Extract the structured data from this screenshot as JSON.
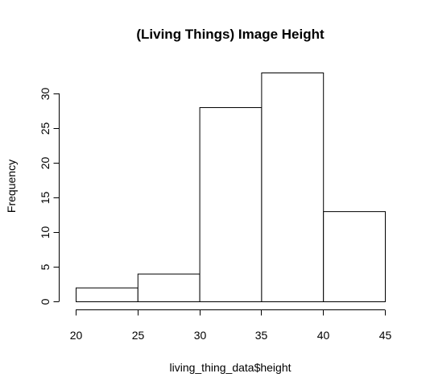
{
  "chart_data": {
    "type": "bar",
    "title": "(Living Things) Image Height",
    "xlabel": "living_thing_data$height",
    "ylabel": "Frequency",
    "bins": [
      {
        "start": 20,
        "end": 25,
        "count": 2
      },
      {
        "start": 25,
        "end": 30,
        "count": 4
      },
      {
        "start": 30,
        "end": 35,
        "count": 28
      },
      {
        "start": 35,
        "end": 40,
        "count": 33
      },
      {
        "start": 40,
        "end": 45,
        "count": 13
      }
    ],
    "x_ticks": [
      20,
      25,
      30,
      35,
      40,
      45
    ],
    "y_ticks": [
      0,
      5,
      10,
      15,
      20,
      25,
      30
    ],
    "xlim": [
      20,
      45
    ],
    "ylim": [
      0,
      33
    ],
    "grid": false,
    "colors": {
      "bar_fill": "#ffffff",
      "bar_stroke": "#000000"
    }
  }
}
